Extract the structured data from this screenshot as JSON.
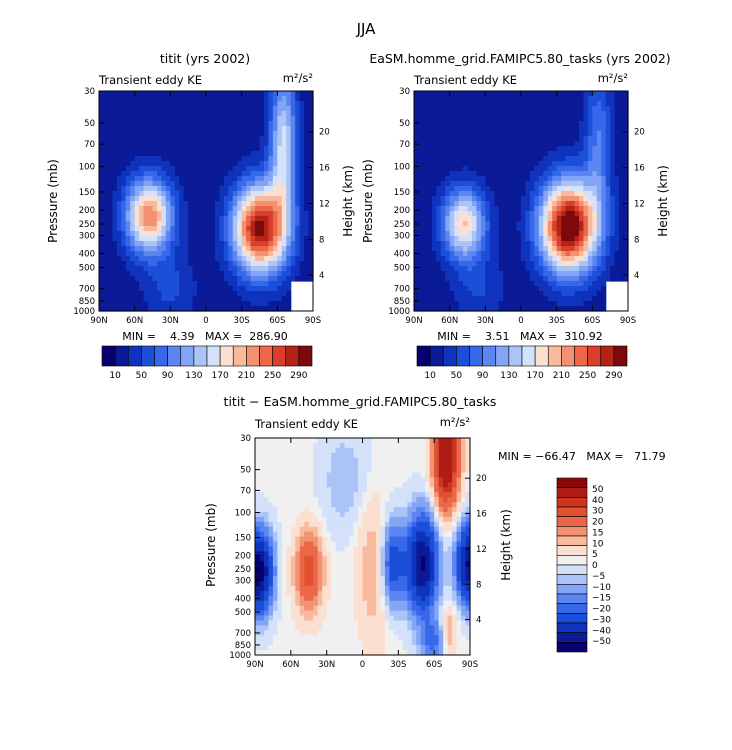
{
  "figure": {
    "title": "JJA"
  },
  "colors": {
    "frame": "#000000",
    "abs_levels": [
      "#08006e",
      "#0b1a97",
      "#0f33bd",
      "#1c4fd9",
      "#3868ea",
      "#5a85f2",
      "#83a5f5",
      "#aac4f8",
      "#d4e1fb",
      "#fbe0d2",
      "#f8b99c",
      "#f39270",
      "#ec6648",
      "#d93f2c",
      "#b42318",
      "#7d0a0a"
    ],
    "diff_levels": [
      "#08006e",
      "#0b1a97",
      "#0f33bd",
      "#1c4fd9",
      "#3868ea",
      "#5a85f2",
      "#83a5f5",
      "#aac4f8",
      "#d4e1fb",
      "#f0f0f0",
      "#fbe0d2",
      "#f8b99c",
      "#f39270",
      "#ec6648",
      "#e0512f",
      "#cc3520",
      "#b01c16",
      "#8a0a0a"
    ]
  },
  "chart_data": [
    {
      "type": "heatmap",
      "title": "titit (yrs 2002)",
      "subtitle_left": "Transient eddy KE",
      "units": "m²/s²",
      "ylabel": "Pressure (mb)",
      "y2label": "Height (km)",
      "x_ticks": [
        "90N",
        "60N",
        "30N",
        "0",
        "30S",
        "60S",
        "90S"
      ],
      "y_ticks": [
        "30",
        "50",
        "70",
        "100",
        "150",
        "200",
        "250",
        "300",
        "400",
        "500",
        "700",
        "850",
        "1000"
      ],
      "y_ticks_values": [
        30,
        50,
        70,
        100,
        150,
        200,
        250,
        300,
        400,
        500,
        700,
        850,
        1000
      ],
      "y2_ticks": [
        "4",
        "8",
        "12",
        "16",
        "20"
      ],
      "y2_ticks_values": [
        4,
        8,
        12,
        16,
        20
      ],
      "xlim": [
        90,
        -90
      ],
      "ylim": [
        1000,
        30
      ],
      "stats": "MIN =    4.39   MAX =  286.90",
      "colorbar_labels": [
        "10",
        "50",
        "90",
        "130",
        "170",
        "210",
        "250",
        "290"
      ],
      "levels": [
        10,
        30,
        50,
        70,
        90,
        110,
        130,
        150,
        170,
        190,
        210,
        230,
        250,
        270,
        290
      ],
      "blobs": [
        {
          "lat": 48,
          "p": 220,
          "amp": 215,
          "slat": 14,
          "sp": 0.42
        },
        {
          "lat": -45,
          "p": 270,
          "amp": 280,
          "slat": 16,
          "sp": 0.5
        },
        {
          "lat": -65,
          "p": 70,
          "amp": 140,
          "slat": 8,
          "sp": 0.9
        },
        {
          "lat": 30,
          "p": 700,
          "amp": 40,
          "slat": 15,
          "sp": 0.4
        }
      ],
      "base": 15
    },
    {
      "type": "heatmap",
      "title": "EaSM.homme_grid.FAMIPC5.80_tasks (yrs 2002)",
      "subtitle_left": "Transient eddy KE",
      "units": "m²/s²",
      "ylabel": "Pressure (mb)",
      "y2label": "Height (km)",
      "x_ticks": [
        "90N",
        "60N",
        "30N",
        "0",
        "30S",
        "60S",
        "90S"
      ],
      "y_ticks": [
        "30",
        "50",
        "70",
        "100",
        "150",
        "200",
        "250",
        "300",
        "400",
        "500",
        "700",
        "850",
        "1000"
      ],
      "y_ticks_values": [
        30,
        50,
        70,
        100,
        150,
        200,
        250,
        300,
        400,
        500,
        700,
        850,
        1000
      ],
      "y2_ticks": [
        "4",
        "8",
        "12",
        "16",
        "20"
      ],
      "y2_ticks_values": [
        4,
        8,
        12,
        16,
        20
      ],
      "xlim": [
        90,
        -90
      ],
      "ylim": [
        1000,
        30
      ],
      "stats": "MIN =    3.51   MAX =  310.92",
      "colorbar_labels": [
        "10",
        "50",
        "90",
        "130",
        "170",
        "210",
        "250",
        "290"
      ],
      "levels": [
        10,
        30,
        50,
        70,
        90,
        110,
        130,
        150,
        170,
        190,
        210,
        230,
        250,
        270,
        290
      ],
      "blobs": [
        {
          "lat": 48,
          "p": 250,
          "amp": 175,
          "slat": 13,
          "sp": 0.4
        },
        {
          "lat": -40,
          "p": 260,
          "amp": 305,
          "slat": 17,
          "sp": 0.52
        },
        {
          "lat": -65,
          "p": 70,
          "amp": 75,
          "slat": 8,
          "sp": 0.9
        },
        {
          "lat": 35,
          "p": 700,
          "amp": 35,
          "slat": 15,
          "sp": 0.4
        }
      ],
      "base": 15
    },
    {
      "type": "heatmap",
      "title": "titit − EaSM.homme_grid.FAMIPC5.80_tasks",
      "subtitle_left": "Transient eddy KE",
      "units": "m²/s²",
      "ylabel": "Pressure (mb)",
      "y2label": "Height (km)",
      "x_ticks": [
        "90N",
        "60N",
        "30N",
        "0",
        "30S",
        "60S",
        "90S"
      ],
      "y_ticks": [
        "30",
        "50",
        "70",
        "100",
        "150",
        "200",
        "250",
        "300",
        "400",
        "500",
        "700",
        "850",
        "1000"
      ],
      "y_ticks_values": [
        30,
        50,
        70,
        100,
        150,
        200,
        250,
        300,
        400,
        500,
        700,
        850,
        1000
      ],
      "y2_ticks": [
        "4",
        "8",
        "12",
        "16",
        "20"
      ],
      "y2_ticks_values": [
        4,
        8,
        12,
        16,
        20
      ],
      "xlim": [
        90,
        -90
      ],
      "ylim": [
        1000,
        30
      ],
      "stats": "MIN = −66.47   MAX =   71.79",
      "colorbar_labels": [
        "50",
        "40",
        "30",
        "20",
        "15",
        "10",
        "5",
        "0",
        "−5",
        "−10",
        "−15",
        "−20",
        "−30",
        "−40",
        "−50"
      ],
      "levels": [
        -50,
        -40,
        -30,
        -20,
        -15,
        -10,
        -5,
        -2,
        2,
        5,
        10,
        15,
        20,
        30,
        40,
        50
      ],
      "blobs": [
        {
          "lat": -70,
          "p": 40,
          "amp": 70,
          "slat": 7,
          "sp": 0.55
        },
        {
          "lat": -50,
          "p": 230,
          "amp": -55,
          "slat": 9,
          "sp": 0.55
        },
        {
          "lat": -25,
          "p": 230,
          "amp": -30,
          "slat": 7,
          "sp": 0.5
        },
        {
          "lat": -90,
          "p": 230,
          "amp": -55,
          "slat": 8,
          "sp": 0.45
        },
        {
          "lat": 87,
          "p": 260,
          "amp": -60,
          "slat": 8,
          "sp": 0.45
        },
        {
          "lat": 45,
          "p": 260,
          "amp": 32,
          "slat": 8,
          "sp": 0.45
        },
        {
          "lat": -10,
          "p": 250,
          "amp": 12,
          "slat": 10,
          "sp": 0.8
        },
        {
          "lat": -72,
          "p": 700,
          "amp": 15,
          "slat": 5,
          "sp": 0.3
        },
        {
          "lat": 15,
          "p": 60,
          "amp": -8,
          "slat": 14,
          "sp": 0.6
        },
        {
          "lat": -60,
          "p": 800,
          "amp": -20,
          "slat": 8,
          "sp": 0.25
        }
      ],
      "base": 3
    }
  ]
}
